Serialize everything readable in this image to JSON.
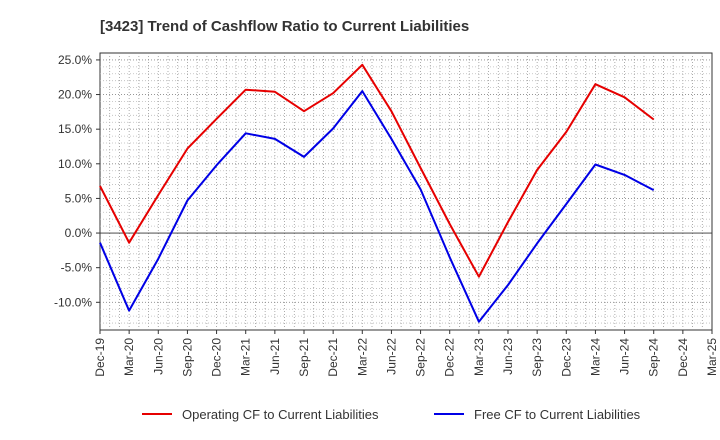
{
  "chart_data": {
    "type": "line",
    "title": "[3423]  Trend of Cashflow Ratio to Current Liabilities",
    "xlabel": "",
    "ylabel": "",
    "categories": [
      "Dec-19",
      "Mar-20",
      "Jun-20",
      "Sep-20",
      "Dec-20",
      "Mar-21",
      "Jun-21",
      "Sep-21",
      "Dec-21",
      "Mar-22",
      "Jun-22",
      "Sep-22",
      "Dec-22",
      "Mar-23",
      "Jun-23",
      "Sep-23",
      "Dec-23",
      "Mar-24",
      "Jun-24",
      "Sep-24",
      "Dec-24",
      "Mar-25"
    ],
    "ylim": [
      -14,
      26
    ],
    "yticks": [
      {
        "value": 25,
        "label": "25.0%"
      },
      {
        "value": 20,
        "label": "20.0%"
      },
      {
        "value": 15,
        "label": "15.0%"
      },
      {
        "value": 10,
        "label": "10.0%"
      },
      {
        "value": 5,
        "label": "5.0%"
      },
      {
        "value": 0,
        "label": "0.0%"
      },
      {
        "value": -5,
        "label": "-5.0%"
      },
      {
        "value": -10,
        "label": "-10.0%"
      }
    ],
    "grid": true,
    "legend_position": "bottom",
    "series": [
      {
        "name": "Operating CF to Current Liabilities",
        "color": "#e60000",
        "values": [
          6.8,
          -1.4,
          5.5,
          12.2,
          16.5,
          20.7,
          20.4,
          17.6,
          20.2,
          24.3,
          17.6,
          9.4,
          1.3,
          -6.3,
          1.6,
          9.1,
          14.6,
          21.5,
          19.6,
          16.4,
          null,
          null
        ]
      },
      {
        "name": "Free CF to Current Liabilities",
        "color": "#0000e6",
        "values": [
          -1.4,
          -11.2,
          -3.7,
          4.7,
          9.8,
          14.4,
          13.6,
          11.0,
          15.1,
          20.5,
          13.6,
          6.3,
          -3.5,
          -12.8,
          -7.5,
          -1.5,
          4.2,
          9.9,
          8.4,
          6.2,
          null,
          null
        ]
      }
    ]
  }
}
